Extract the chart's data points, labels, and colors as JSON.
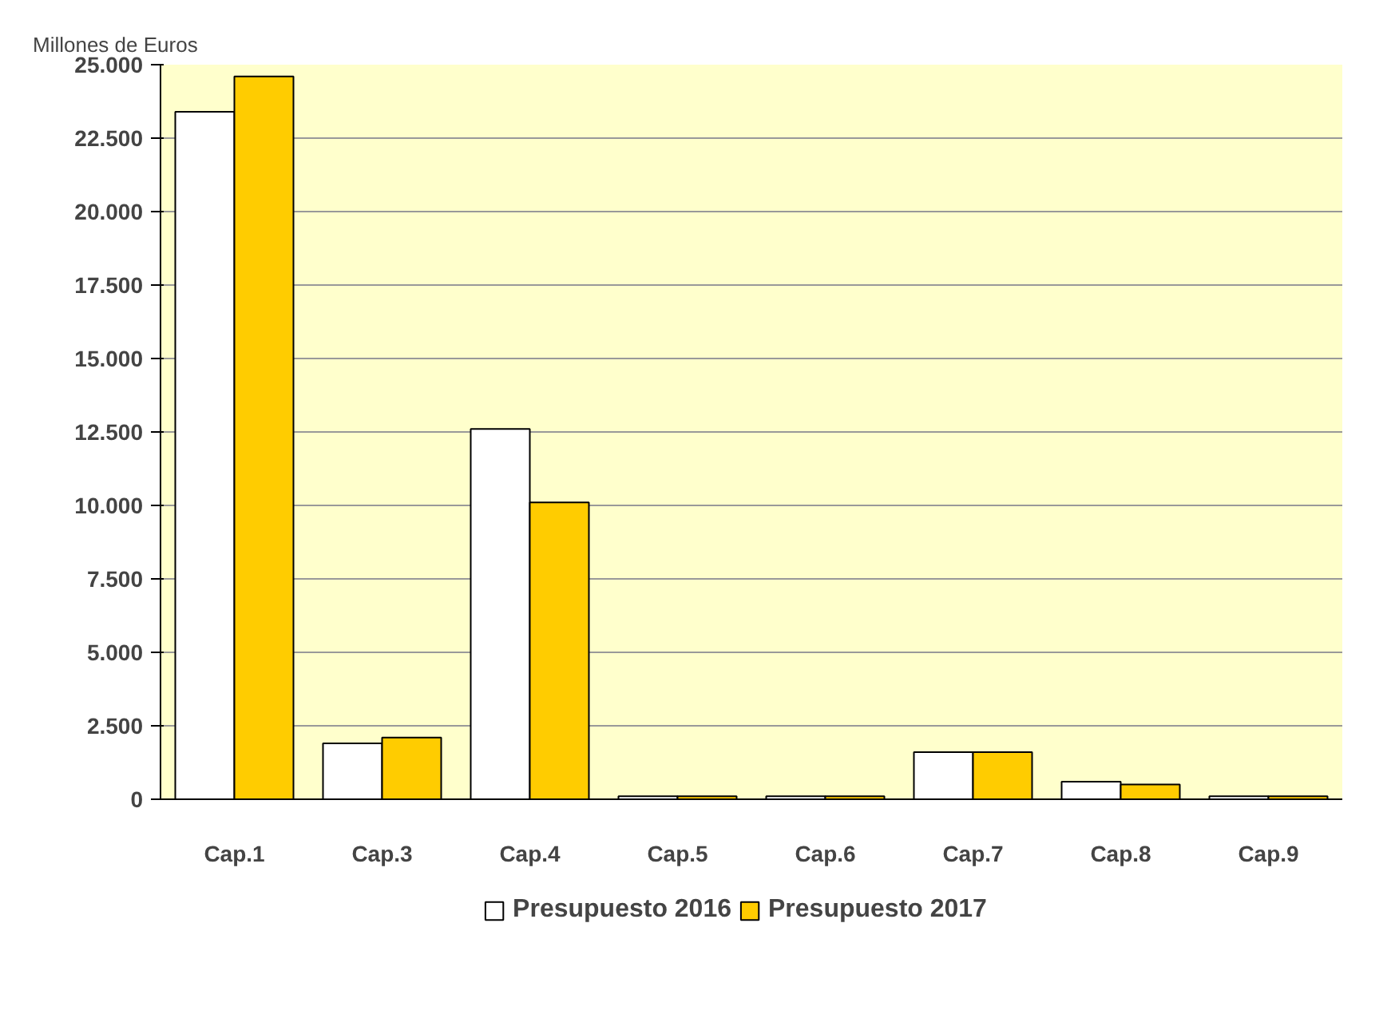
{
  "chart_data": {
    "type": "bar",
    "ylabel": "Millones de Euros",
    "categories": [
      "Cap.1",
      "Cap.3",
      "Cap.4",
      "Cap.5",
      "Cap.6",
      "Cap.7",
      "Cap.8",
      "Cap.9"
    ],
    "series": [
      {
        "name": "Presupuesto 2016",
        "color": "#ffffff",
        "values": [
          23400,
          1900,
          12600,
          100,
          100,
          1600,
          600,
          100
        ]
      },
      {
        "name": "Presupuesto 2017",
        "color": "#ffcc00",
        "values": [
          24600,
          2100,
          10100,
          100,
          100,
          1600,
          500,
          100
        ]
      }
    ],
    "ylim": [
      0,
      25000
    ],
    "yticks": [
      {
        "value": 0,
        "label": "0"
      },
      {
        "value": 2500,
        "label": "2.500"
      },
      {
        "value": 5000,
        "label": "5.000"
      },
      {
        "value": 7500,
        "label": "7.500"
      },
      {
        "value": 10000,
        "label": "10.000"
      },
      {
        "value": 12500,
        "label": "12.500"
      },
      {
        "value": 15000,
        "label": "15.000"
      },
      {
        "value": 17500,
        "label": "17.500"
      },
      {
        "value": 20000,
        "label": "20.000"
      },
      {
        "value": 22500,
        "label": "22.500"
      },
      {
        "value": 25000,
        "label": "25.000"
      }
    ],
    "grid": "y",
    "legend": "bottom"
  }
}
